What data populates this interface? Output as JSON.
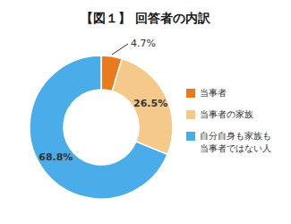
{
  "chart_data": {
    "type": "donut",
    "title": "【図１】 回答者の内訳",
    "categories": [
      "当事者",
      "当事者の家族",
      "自分自身も家族も\n当事者ではない人"
    ],
    "values": [
      4.7,
      26.5,
      68.8
    ],
    "value_labels": [
      "4.7%",
      "26.5%",
      "68.8%"
    ],
    "colors": [
      "#E87B1E",
      "#F5C98A",
      "#4AACE8"
    ],
    "data_labels": true,
    "legend": "right"
  }
}
